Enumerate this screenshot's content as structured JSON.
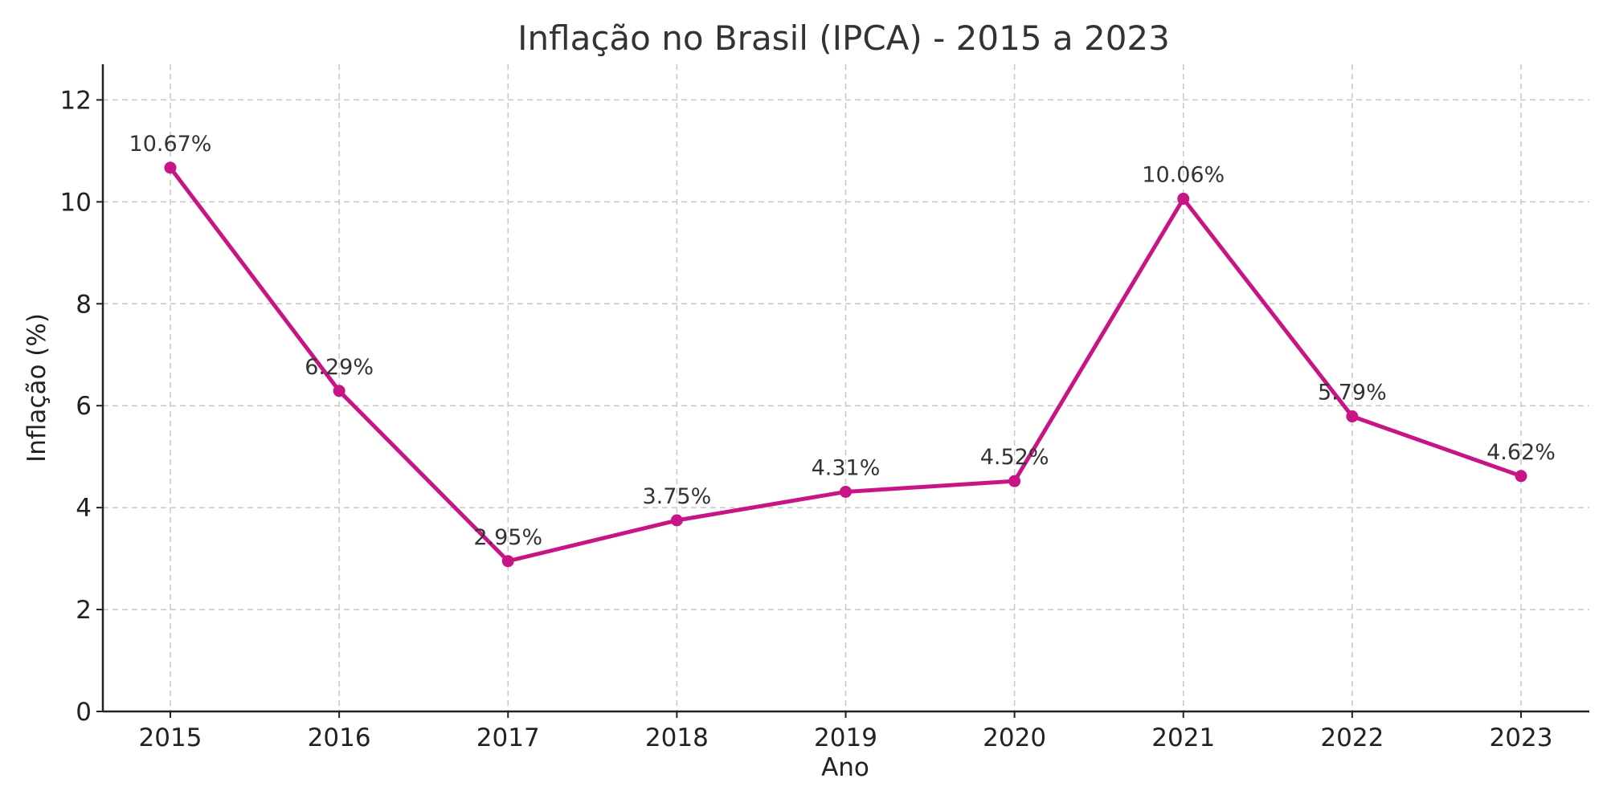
{
  "chart_data": {
    "type": "line",
    "title": "Inflação no Brasil (IPCA) - 2015 a 2023",
    "xlabel": "Ano",
    "ylabel": "Inflação (%)",
    "ylim": [
      0,
      12.7
    ],
    "yticks": [
      0,
      2,
      4,
      6,
      8,
      10,
      12
    ],
    "grid": true,
    "categories": [
      "2015",
      "2016",
      "2017",
      "2018",
      "2019",
      "2020",
      "2021",
      "2022",
      "2023"
    ],
    "series": [
      {
        "values": [
          10.67,
          6.29,
          2.95,
          3.75,
          4.31,
          4.52,
          10.06,
          5.79,
          4.62
        ],
        "color": "#C71585"
      }
    ],
    "data_labels": [
      "10.67%",
      "6.29%",
      "2.95%",
      "3.75%",
      "4.31%",
      "4.52%",
      "10.06%",
      "5.79%",
      "4.62%"
    ]
  }
}
